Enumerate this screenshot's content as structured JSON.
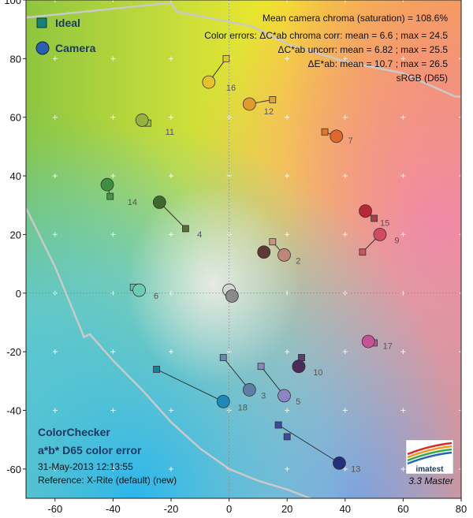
{
  "chart_data": {
    "type": "scatter",
    "xlim": [
      -70,
      80
    ],
    "ylim": [
      -70,
      100
    ],
    "x_ticks": [
      -60,
      -40,
      -20,
      0,
      20,
      40,
      60,
      80
    ],
    "y_ticks": [
      100,
      80,
      60,
      40,
      20,
      0,
      -20,
      -40,
      -60
    ],
    "grid": "dotted cross axes at 0",
    "legend": {
      "placement": "top-left",
      "entries": [
        {
          "name": "Ideal",
          "marker": "square"
        },
        {
          "name": "Camera",
          "marker": "circle"
        }
      ]
    },
    "annotations": [
      "Mean camera chroma (saturation) = 108.6%",
      "Color errors: ΔC*ab chroma corr:  mean = 6.6 ;  max = 24.5",
      "ΔC*ab uncorr:  mean = 6.82 ;  max = 25.5",
      "ΔE*ab:  mean = 10.7 ;  max = 26.5",
      "sRGB (D65)"
    ],
    "title_lines": [
      "ColorChecker",
      "a*b* D65 color error"
    ],
    "date": "31-May-2013 12:13:55",
    "reference": "Reference: X-Rite (default) (new)",
    "version": "3.3  Master",
    "logo": "imatest",
    "gamut_boundary": [
      [
        [
          -70,
          94
        ],
        [
          -40,
          97
        ],
        [
          -20,
          99
        ],
        [
          -18,
          96
        ],
        [
          8,
          91
        ],
        [
          20,
          85
        ],
        [
          40,
          79
        ],
        [
          60,
          75
        ],
        [
          78,
          67
        ],
        [
          80,
          67
        ]
      ],
      [
        [
          -70,
          29
        ],
        [
          -60,
          9
        ],
        [
          -50,
          -15
        ],
        [
          -48,
          -14
        ],
        [
          -40,
          -23
        ],
        [
          -30,
          -33
        ],
        [
          -20,
          -44
        ],
        [
          -10,
          -53
        ],
        [
          0,
          -60
        ],
        [
          10,
          -64
        ],
        [
          20,
          -67
        ],
        [
          28,
          -70
        ]
      ]
    ],
    "patches": [
      {
        "id": "1",
        "ideal": [
          12,
          14
        ],
        "camera": [
          12,
          14
        ],
        "color": "#5a3a33",
        "ideal_color": "#6e4a40"
      },
      {
        "id": "2",
        "ideal": [
          15,
          17.5
        ],
        "camera": [
          19,
          13
        ],
        "color": "#c0867a",
        "ideal_color": "#c99485"
      },
      {
        "id": "3",
        "ideal": [
          -2,
          -22
        ],
        "camera": [
          7,
          -33
        ],
        "color": "#5c7ea6",
        "ideal_color": "#6a87ab"
      },
      {
        "id": "4",
        "ideal": [
          -15,
          22
        ],
        "camera": [
          -24,
          31
        ],
        "color": "#3d6a2c",
        "ideal_color": "#5a6e3a"
      },
      {
        "id": "5",
        "ideal": [
          11,
          -25
        ],
        "camera": [
          19,
          -35
        ],
        "color": "#8b85c4",
        "ideal_color": "#8888bb"
      },
      {
        "id": "6",
        "ideal": [
          -33,
          2
        ],
        "camera": [
          -31,
          1
        ],
        "color": "#6ccbb5",
        "ideal_color": "#69bdab"
      },
      {
        "id": "7",
        "ideal": [
          33,
          55
        ],
        "camera": [
          37,
          53.5
        ],
        "color": "#e2652b",
        "ideal_color": "#d97a2e"
      },
      {
        "id": "8",
        "ideal": [
          25,
          -22
        ],
        "camera": [
          24,
          -25
        ],
        "color": "#44368a",
        "ideal_color": "#4c5c9c"
      },
      {
        "id": "9",
        "ideal": [
          46,
          14
        ],
        "camera": [
          52,
          20
        ],
        "color": "#d04a60",
        "ideal_color": "#c25a62"
      },
      {
        "id": "10",
        "ideal": [
          25,
          -22
        ],
        "camera": [
          24,
          -25
        ],
        "color": "#4a2a58",
        "ideal_color": "#5e3c6c"
      },
      {
        "id": "11",
        "ideal": [
          -28,
          58
        ],
        "camera": [
          -30,
          59
        ],
        "color": "#97b23c",
        "ideal_color": "#9dbc40"
      },
      {
        "id": "12",
        "ideal": [
          15,
          66
        ],
        "camera": [
          7,
          64.5
        ],
        "color": "#e09b2a",
        "ideal_color": "#e0a32e"
      },
      {
        "id": "13",
        "ideal": [
          17,
          -45
        ],
        "camera": [
          38,
          -58
        ],
        "color": "#23307e",
        "ideal_color": "#383d96"
      },
      {
        "id": "14",
        "ideal": [
          -41,
          33
        ],
        "camera": [
          -42,
          37
        ],
        "color": "#3f8f3c",
        "ideal_color": "#469449"
      },
      {
        "id": "15",
        "ideal": [
          50,
          25.5
        ],
        "camera": [
          47,
          28
        ],
        "color": "#b52a34",
        "ideal_color": "#b03c3c"
      },
      {
        "id": "16",
        "ideal": [
          -1,
          80
        ],
        "camera": [
          -7,
          72
        ],
        "color": "#e6c22a",
        "ideal_color": "#e7c71f"
      },
      {
        "id": "17",
        "ideal": [
          50,
          -17
        ],
        "camera": [
          48,
          -16.5
        ],
        "color": "#c35296",
        "ideal_color": "#bb5695"
      },
      {
        "id": "18",
        "ideal": [
          -25,
          -26
        ],
        "camera": [
          -2,
          -37
        ],
        "color": "#1e88b8",
        "ideal_color": "#0886a1"
      },
      {
        "id": "20",
        "ideal": [
          0,
          0
        ],
        "camera": [
          0,
          1
        ],
        "color": "#d6d6d6",
        "ideal_color": "#c8c8c8"
      },
      {
        "id": "22",
        "ideal": [
          0,
          0
        ],
        "camera": [
          1,
          -1
        ],
        "color": "#8a8a8a",
        "ideal_color": "#7a7a7a"
      }
    ],
    "extra_ideal_points": [
      [
        20,
        -49
      ],
      [
        17,
        -45
      ]
    ],
    "patch_labels": [
      {
        "text": "16",
        "at": [
          -1,
          69
        ]
      },
      {
        "text": "12",
        "at": [
          12,
          61
        ]
      },
      {
        "text": "11",
        "at": [
          -22,
          54
        ]
      },
      {
        "text": "7",
        "at": [
          41,
          51
        ]
      },
      {
        "text": "14",
        "at": [
          -35,
          30
        ]
      },
      {
        "text": "4",
        "at": [
          -11,
          19
        ]
      },
      {
        "text": "15",
        "at": [
          52,
          23
        ]
      },
      {
        "text": "9",
        "at": [
          57,
          17
        ]
      },
      {
        "text": "2",
        "at": [
          23,
          10
        ]
      },
      {
        "text": "6",
        "at": [
          -26,
          -2
        ]
      },
      {
        "text": "17",
        "at": [
          53,
          -19
        ]
      },
      {
        "text": "10",
        "at": [
          29,
          -28
        ]
      },
      {
        "text": "3",
        "at": [
          11,
          -36
        ]
      },
      {
        "text": "5",
        "at": [
          23,
          -38
        ]
      },
      {
        "text": "18",
        "at": [
          3,
          -40
        ]
      },
      {
        "text": "13",
        "at": [
          42,
          -61
        ]
      }
    ]
  }
}
